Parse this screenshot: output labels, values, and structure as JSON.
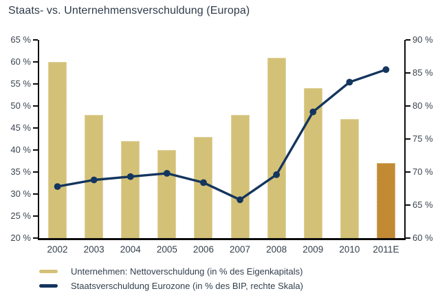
{
  "title": "Staats- vs. Unternehmensverschuldung (Europa)",
  "chart_data": {
    "type": "bar",
    "subtype": "combo-bar-line-dual-axis",
    "title": "Staats- vs. Unternehmensverschuldung (Europa)",
    "categories": [
      "2002",
      "2003",
      "2004",
      "2005",
      "2006",
      "2007",
      "2008",
      "2009",
      "2010",
      "2011E"
    ],
    "series": [
      {
        "name": "Unternehmen: Nettoverschuldung (in % des Eigenkapitals)",
        "type": "bar",
        "axis": "left",
        "values": [
          60,
          48,
          42,
          40,
          43,
          48,
          61,
          54,
          47,
          37
        ],
        "color": "#d4c178",
        "highlight_index": 9,
        "highlight_color": "#c28b33"
      },
      {
        "name": "Staatsverschuldung Eurozone (in % des BIP, rechte Skala)",
        "type": "line",
        "axis": "right",
        "values": [
          67.8,
          68.8,
          69.3,
          69.8,
          68.4,
          65.8,
          69.6,
          79.1,
          83.6,
          85.5
        ],
        "color": "#14355e"
      }
    ],
    "left_axis": {
      "min": 20,
      "max": 65,
      "step": 5,
      "tick_labels": [
        "65 %",
        "60 %",
        "55 %",
        "50 %",
        "45 %",
        "40 %",
        "35 %",
        "30 %",
        "25 %",
        "20 %"
      ]
    },
    "right_axis": {
      "min": 60,
      "max": 90,
      "step": 5,
      "tick_labels": [
        "90 %",
        "85 %",
        "80 %",
        "75 %",
        "70 %",
        "65 %",
        "60 %"
      ]
    },
    "grid": false,
    "legend_position": "bottom-left"
  },
  "legend": {
    "items": [
      {
        "label": "Unternehmen: Nettoverschuldung (in % des Eigenkapitals)",
        "color": "#d4c178"
      },
      {
        "label": "Staatsverschuldung Eurozone (in % des BIP, rechte Skala)",
        "color": "#14355e"
      }
    ]
  },
  "colors": {
    "bar": "#d4c178",
    "bar_highlight": "#c28b33",
    "line": "#14355e",
    "axis": "#0c0c0c",
    "text": "#33404e"
  }
}
